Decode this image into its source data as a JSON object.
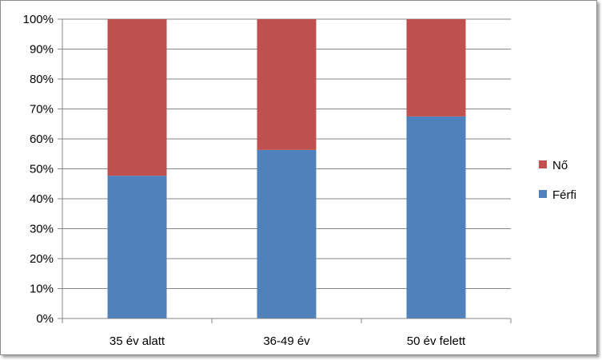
{
  "chart_data": {
    "type": "bar",
    "stacked": true,
    "percent": true,
    "categories": [
      "35 év alatt",
      "36-49 év",
      "50 év felett"
    ],
    "series": [
      {
        "name": "Férfi",
        "values": [
          47.7,
          56.3,
          67.5
        ],
        "color": "#4f81bd"
      },
      {
        "name": "Nő",
        "values": [
          52.3,
          43.7,
          32.5
        ],
        "color": "#c0504d"
      }
    ],
    "yticks": [
      "0%",
      "10%",
      "20%",
      "30%",
      "40%",
      "50%",
      "60%",
      "70%",
      "80%",
      "90%",
      "100%"
    ],
    "ylim": [
      0,
      100
    ],
    "grid": true,
    "legend": "right",
    "legend_order": [
      "Nő",
      "Férfi"
    ]
  }
}
